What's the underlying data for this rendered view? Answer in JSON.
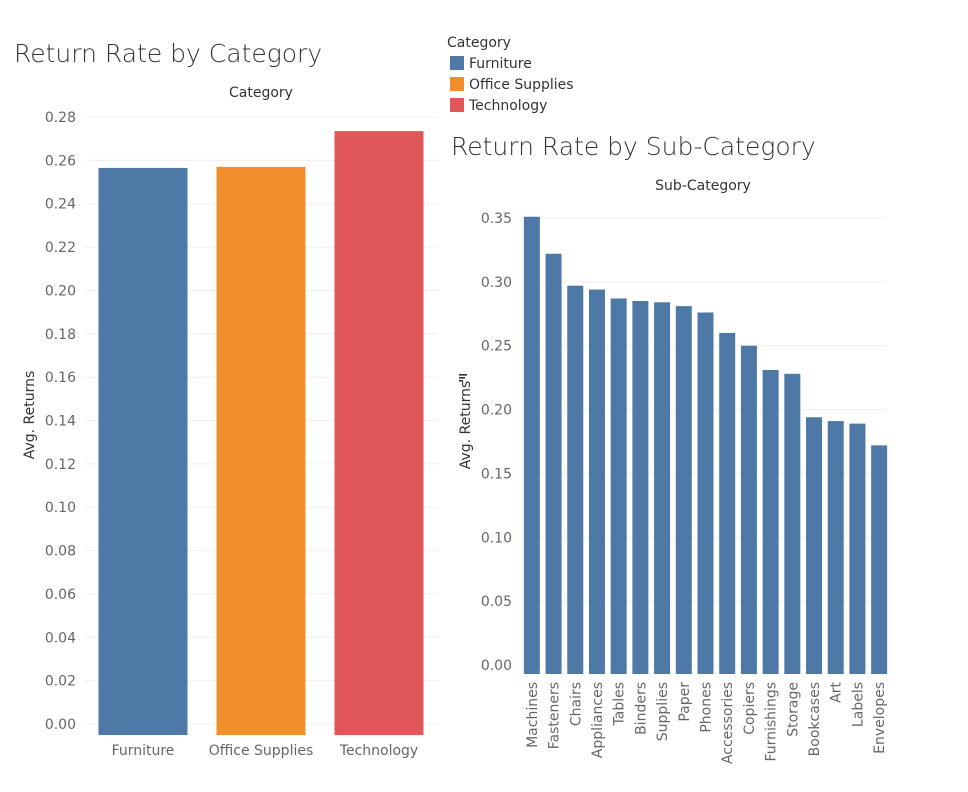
{
  "legend": {
    "title": "Category",
    "entries": [
      {
        "label": "Furniture",
        "color": "#4e79a7"
      },
      {
        "label": "Office Supplies",
        "color": "#f28e2b"
      },
      {
        "label": "Technology",
        "color": "#e15759"
      }
    ]
  },
  "chart_data": [
    {
      "type": "bar",
      "title": "Return Rate by Category",
      "header": "Category",
      "xlabel": "",
      "ylabel": "Avg. Returns",
      "ylim": [
        0,
        0.28
      ],
      "yticks": [
        0.0,
        0.02,
        0.04,
        0.06,
        0.08,
        0.1,
        0.12,
        0.14,
        0.16,
        0.18,
        0.2,
        0.22,
        0.24,
        0.26,
        0.28
      ],
      "categories": [
        "Furniture",
        "Office Supplies",
        "Technology"
      ],
      "values": [
        0.2565,
        0.257,
        0.2735
      ],
      "colors": [
        "#4e79a7",
        "#f28e2b",
        "#e15759"
      ]
    },
    {
      "type": "bar",
      "title": "Return Rate by Sub-Category",
      "header": "Sub-Category",
      "xlabel": "",
      "ylabel": "Avg. Returns",
      "ylim": [
        0,
        0.35
      ],
      "yticks": [
        0.0,
        0.05,
        0.1,
        0.15,
        0.2,
        0.25,
        0.3,
        0.35
      ],
      "categories": [
        "Machines",
        "Fasteners",
        "Chairs",
        "Appliances",
        "Tables",
        "Binders",
        "Supplies",
        "Paper",
        "Phones",
        "Accessories",
        "Copiers",
        "Furnishings",
        "Storage",
        "Bookcases",
        "Art",
        "Labels",
        "Envelopes"
      ],
      "values": [
        0.351,
        0.322,
        0.297,
        0.294,
        0.287,
        0.285,
        0.284,
        0.281,
        0.276,
        0.26,
        0.25,
        0.231,
        0.228,
        0.194,
        0.191,
        0.189,
        0.172
      ],
      "color": "#4e79a7",
      "sort_indicator": "sort-descending-icon"
    }
  ]
}
